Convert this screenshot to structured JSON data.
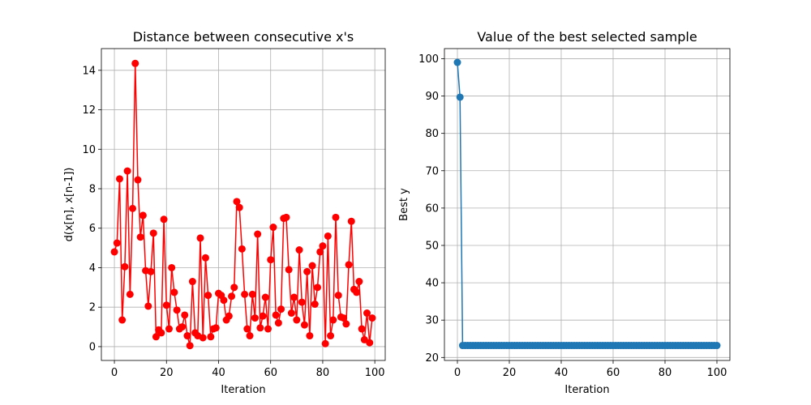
{
  "chart_data": [
    {
      "type": "line",
      "title": "Distance between consecutive x's",
      "xlabel": "Iteration",
      "ylabel": "d(x[n], x[n-1])",
      "xlim": [
        -5,
        104
      ],
      "ylim": [
        -0.7,
        15.1
      ],
      "xticks": [
        0,
        20,
        40,
        60,
        80,
        100
      ],
      "yticks": [
        0,
        2,
        4,
        6,
        8,
        10,
        12,
        14
      ],
      "grid": true,
      "color": "#ff0000",
      "marker": "circle",
      "series": [
        {
          "x": [
            0,
            1,
            2,
            3,
            4,
            5,
            6,
            7,
            8,
            9,
            10,
            11,
            12,
            13,
            14,
            15,
            16,
            17,
            18,
            19,
            20,
            21,
            22,
            23,
            24,
            25,
            26,
            27,
            28,
            29,
            30,
            31,
            32,
            33,
            34,
            35,
            36,
            37,
            38,
            39,
            40,
            41,
            42,
            43,
            44,
            45,
            46,
            47,
            48,
            49,
            50,
            51,
            52,
            53,
            54,
            55,
            56,
            57,
            58,
            59,
            60,
            61,
            62,
            63,
            64,
            65,
            66,
            67,
            68,
            69,
            70,
            71,
            72,
            73,
            74,
            75,
            76,
            77,
            78,
            79,
            80,
            81,
            82,
            83,
            84,
            85,
            86,
            87,
            88,
            89,
            90,
            91,
            92,
            93,
            94,
            95,
            96,
            97,
            98,
            99
          ],
          "y": [
            4.8,
            5.25,
            8.5,
            1.35,
            4.05,
            8.9,
            2.65,
            7.0,
            14.35,
            8.45,
            5.55,
            6.65,
            3.85,
            2.05,
            3.8,
            5.75,
            0.5,
            0.85,
            0.7,
            6.45,
            2.1,
            0.9,
            4.0,
            2.75,
            1.85,
            0.9,
            1.0,
            1.6,
            0.55,
            0.05,
            3.3,
            0.7,
            0.55,
            5.5,
            0.45,
            4.5,
            2.6,
            0.5,
            0.9,
            0.95,
            2.7,
            2.6,
            2.35,
            1.35,
            1.55,
            2.55,
            3.0,
            7.35,
            7.05,
            4.95,
            2.65,
            0.9,
            0.55,
            2.65,
            1.45,
            5.7,
            0.95,
            1.55,
            2.5,
            0.9,
            4.4,
            6.05,
            1.6,
            1.2,
            1.9,
            6.5,
            6.55,
            3.9,
            1.7,
            2.5,
            1.35,
            4.9,
            2.25,
            1.1,
            3.8,
            0.55,
            4.1,
            2.15,
            3.0,
            4.8,
            5.1,
            0.15,
            5.6,
            0.55,
            1.35,
            6.55,
            2.6,
            1.5,
            1.45,
            1.15,
            4.15,
            6.35,
            2.9,
            2.75,
            3.3,
            0.9,
            0.35,
            1.7,
            0.2,
            1.45
          ]
        }
      ]
    },
    {
      "type": "line",
      "title": "Value of the best selected sample",
      "xlabel": "Iteration",
      "ylabel": "Best y",
      "xlim": [
        -5,
        105
      ],
      "ylim": [
        19.2,
        102.7
      ],
      "xticks": [
        0,
        20,
        40,
        60,
        80,
        100
      ],
      "yticks": [
        20,
        30,
        40,
        50,
        60,
        70,
        80,
        90,
        100
      ],
      "grid": true,
      "color": "#1f77b4",
      "marker": "circle",
      "series": [
        {
          "x": [
            0,
            1,
            2,
            3,
            4,
            5,
            6,
            7,
            8,
            9,
            10,
            11,
            12,
            13,
            14,
            15,
            16,
            17,
            18,
            19,
            20,
            21,
            22,
            23,
            24,
            25,
            26,
            27,
            28,
            29,
            30,
            31,
            32,
            33,
            34,
            35,
            36,
            37,
            38,
            39,
            40,
            41,
            42,
            43,
            44,
            45,
            46,
            47,
            48,
            49,
            50,
            51,
            52,
            53,
            54,
            55,
            56,
            57,
            58,
            59,
            60,
            61,
            62,
            63,
            64,
            65,
            66,
            67,
            68,
            69,
            70,
            71,
            72,
            73,
            74,
            75,
            76,
            77,
            78,
            79,
            80,
            81,
            82,
            83,
            84,
            85,
            86,
            87,
            88,
            89,
            90,
            91,
            92,
            93,
            94,
            95,
            96,
            97,
            98,
            99,
            100
          ],
          "y": [
            99.0,
            89.7,
            23.2,
            23.2,
            23.2,
            23.2,
            23.2,
            23.2,
            23.2,
            23.2,
            23.2,
            23.2,
            23.2,
            23.2,
            23.2,
            23.2,
            23.2,
            23.2,
            23.2,
            23.2,
            23.2,
            23.2,
            23.2,
            23.2,
            23.2,
            23.2,
            23.2,
            23.2,
            23.2,
            23.2,
            23.2,
            23.2,
            23.2,
            23.2,
            23.2,
            23.2,
            23.2,
            23.2,
            23.2,
            23.2,
            23.2,
            23.2,
            23.2,
            23.2,
            23.2,
            23.2,
            23.2,
            23.2,
            23.2,
            23.2,
            23.2,
            23.2,
            23.2,
            23.2,
            23.2,
            23.2,
            23.2,
            23.2,
            23.2,
            23.2,
            23.2,
            23.2,
            23.2,
            23.2,
            23.2,
            23.2,
            23.2,
            23.2,
            23.2,
            23.2,
            23.2,
            23.2,
            23.2,
            23.2,
            23.2,
            23.2,
            23.2,
            23.2,
            23.2,
            23.2,
            23.2,
            23.2,
            23.2,
            23.2,
            23.2,
            23.2,
            23.2,
            23.2,
            23.2,
            23.2,
            23.2,
            23.2,
            23.2,
            23.2,
            23.2,
            23.2,
            23.2,
            23.2,
            23.2,
            23.2,
            23.2
          ]
        }
      ]
    }
  ]
}
